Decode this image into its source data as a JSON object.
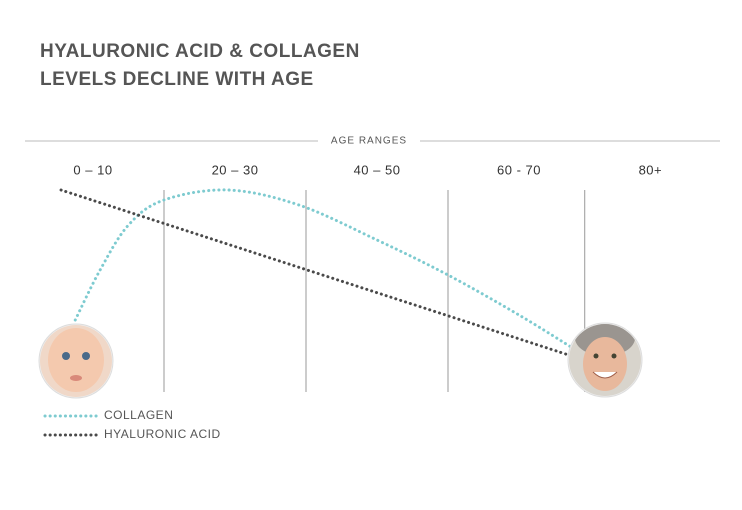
{
  "chart_data": {
    "type": "line",
    "title": [
      "HYALURONIC ACID & COLLAGEN",
      "LEVELS DECLINE WITH AGE"
    ],
    "x_label": "AGE RANGES",
    "xlim": [
      0,
      90
    ],
    "xticks": [
      {
        "value": 5,
        "label": "0 – 10"
      },
      {
        "value": 25,
        "label": "20 – 30"
      },
      {
        "value": 45,
        "label": "40 – 50"
      },
      {
        "value": 65,
        "label": "60 - 70"
      },
      {
        "value": 83.5,
        "label": "80+"
      }
    ],
    "ylim": [
      0,
      100
    ],
    "series": [
      {
        "name": "COLLAGEN",
        "color": "#7ecbd0",
        "x": [
          2.5,
          6,
          10,
          15,
          24,
          34,
          45,
          55,
          65,
          73
        ],
        "values": [
          30,
          55,
          77.5,
          90,
          95,
          87.5,
          70,
          52.5,
          32.5,
          15
        ]
      },
      {
        "name": "HYALURONIC ACID",
        "color": "#4a4a4a",
        "x": [
          0.5,
          72
        ],
        "values": [
          95,
          12.5
        ]
      }
    ]
  }
}
